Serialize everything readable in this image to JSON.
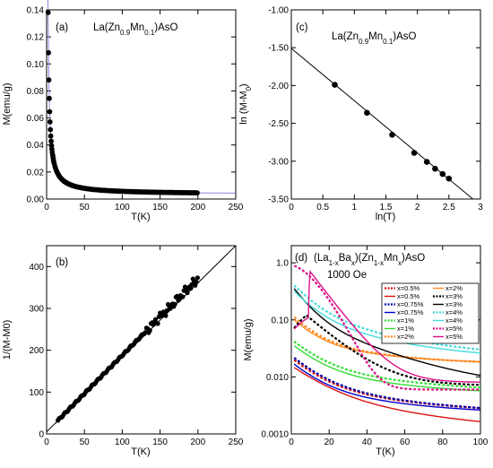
{
  "chart_data": [
    {
      "panel": "a",
      "type": "scatter",
      "label": "(a)",
      "title": "La(Zn0.9Mn0.1)AsO",
      "xlabel": "T(K)",
      "ylabel": "M(emu/g)",
      "xlim": [
        0,
        250
      ],
      "ylim": [
        0,
        0.14
      ],
      "xticks": [
        "0",
        "50",
        "100",
        "150",
        "200",
        "250"
      ],
      "yticks": [
        "0.00",
        "0.02",
        "0.04",
        "0.06",
        "0.08",
        "0.10",
        "0.12",
        "0.14"
      ],
      "fit_color": "#8888dd",
      "series": [
        {
          "M0": 0.0035,
          "C": 0.22,
          "theta": 0.4,
          "Tmin": 2,
          "Tmax": 200
        }
      ]
    },
    {
      "panel": "b",
      "type": "scatter",
      "label": "(b)",
      "xlabel": "T(K)",
      "ylabel": "1/(M-M0)",
      "xlim": [
        0,
        250
      ],
      "ylim": [
        0,
        450
      ],
      "xticks": [
        "0",
        "50",
        "100",
        "150",
        "200",
        "250"
      ],
      "yticks": [
        "0",
        "100",
        "200",
        "300",
        "400"
      ],
      "series": [
        {
          "slope": 1.83,
          "intercept": 5,
          "Tmin": 15,
          "Tmax": 200,
          "line_x": [
            0,
            250
          ]
        }
      ]
    },
    {
      "panel": "c",
      "type": "scatter",
      "label": "(c)",
      "title": "La(Zn0.9Mn0.1)AsO",
      "xlabel": "ln(T)",
      "ylabel": "ln (M-M0)",
      "xlim": [
        0,
        3
      ],
      "ylim": [
        -3.5,
        -1.0
      ],
      "xticks": [
        "0",
        "0.5",
        "1",
        "1.5",
        "2",
        "2.5",
        "3"
      ],
      "yticks": [
        "-1.00",
        "-1.50",
        "-2.00",
        "-2.50",
        "-3.00",
        "-3.50"
      ],
      "series": [
        {
          "points": [
            [
              0.69,
              -1.99
            ],
            [
              1.2,
              -2.36
            ],
            [
              1.6,
              -2.65
            ],
            [
              1.95,
              -2.89
            ],
            [
              2.15,
              -3.01
            ],
            [
              2.28,
              -3.1
            ],
            [
              2.4,
              -3.17
            ],
            [
              2.5,
              -3.23
            ]
          ],
          "line": [
            [
              0,
              -1.51
            ],
            [
              2.88,
              -3.5
            ]
          ]
        }
      ]
    },
    {
      "panel": "d",
      "type": "line",
      "label": "(d)",
      "title": "(La1-xBax)(Zn1-xMnx)AsO",
      "annotation": "1000 Oe",
      "xlabel": "T(K)",
      "ylabel": "M(emu/g)",
      "xlim": [
        0,
        100
      ],
      "ylim": [
        0.001,
        2
      ],
      "yscale": "log",
      "xticks": [
        "0",
        "20",
        "40",
        "60",
        "80",
        "100"
      ],
      "yticks": [
        "0.0010",
        "0.010",
        "0.10",
        "1.0"
      ],
      "legend_position": "top-right",
      "series": [
        {
          "name": "x=0.5%",
          "color": "#dd1111",
          "dashed": true,
          "curve": "low",
          "a": 0.0145,
          "b": 0.0022,
          "tau": 12
        },
        {
          "name": "x=0.5%",
          "color": "#dd1111",
          "dashed": false,
          "curve": "low",
          "a": 0.011,
          "b": 0.0009,
          "tau": 15
        },
        {
          "name": "x=0.75%",
          "color": "#0000aa",
          "dashed": true,
          "curve": "low",
          "a": 0.016,
          "b": 0.00215,
          "tau": 12
        },
        {
          "name": "x=0.75%",
          "color": "#0000cc",
          "dashed": false,
          "curve": "low",
          "a": 0.012,
          "b": 0.0021,
          "tau": 12
        },
        {
          "name": "x=1%",
          "color": "#33dd33",
          "dashed": true,
          "curve": "low",
          "a": 0.03,
          "b": 0.0052,
          "tau": 12
        },
        {
          "name": "x=1%",
          "color": "#33dd33",
          "dashed": false,
          "curve": "low",
          "a": 0.025,
          "b": 0.0046,
          "tau": 12
        },
        {
          "name": "x=2%",
          "color": "#ff8822",
          "dashed": true,
          "curve": "low",
          "a": 0.08,
          "b": 0.016,
          "tau": 10
        },
        {
          "name": "x=2%",
          "color": "#ff8822",
          "dashed": false,
          "curve": "low",
          "a": 0.07,
          "b": 0.0165,
          "tau": 10
        },
        {
          "name": "x=3%",
          "color": "#000000",
          "dashed": true,
          "curve": "hump",
          "peak_T": 8,
          "peak_M": 0.12,
          "start_M": 0.06,
          "b": 0.007,
          "tau": 15
        },
        {
          "name": "x=3%",
          "color": "#000000",
          "dashed": false,
          "curve": "low",
          "a": 0.3,
          "b": 0.006,
          "tau": 8
        },
        {
          "name": "x=4%",
          "color": "#44dddd",
          "dashed": true,
          "curve": "low",
          "a": 0.32,
          "b": 0.021,
          "tau": 10
        },
        {
          "name": "x=4%",
          "color": "#44dddd",
          "dashed": false,
          "curve": "low",
          "a": 0.25,
          "b": 0.019,
          "tau": 10
        },
        {
          "name": "x=5%",
          "color": "#dd1188",
          "dashed": true,
          "curve": "pink_dash",
          "start_M": 0.9,
          "b": 0.006,
          "tau": 16
        },
        {
          "name": "x=5%",
          "color": "#dd1188",
          "dashed": false,
          "curve": "pink_solid",
          "peak_T": 10,
          "peak_M": 0.7,
          "low_M": 0.11,
          "b": 0.008,
          "tau": 10
        }
      ]
    }
  ]
}
